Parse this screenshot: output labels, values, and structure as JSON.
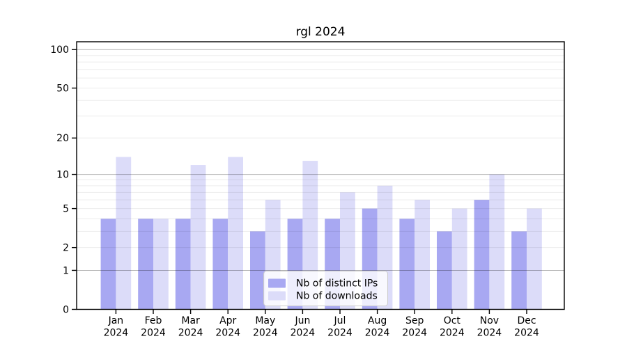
{
  "chart_data": {
    "type": "bar",
    "title": "rgl 2024",
    "categories": [
      "Jan 2024",
      "Feb 2024",
      "Mar 2024",
      "Apr 2024",
      "May 2024",
      "Jun 2024",
      "Jul 2024",
      "Aug 2024",
      "Sep 2024",
      "Oct 2024",
      "Nov 2024",
      "Dec 2024"
    ],
    "x_tick_months": [
      "Jan",
      "Feb",
      "Mar",
      "Apr",
      "May",
      "Jun",
      "Jul",
      "Aug",
      "Sep",
      "Oct",
      "Nov",
      "Dec"
    ],
    "x_tick_year": "2024",
    "series": [
      {
        "name": "Nb of distinct IPs",
        "color": "#a8a8f2",
        "values": [
          4,
          4,
          4,
          4,
          3,
          4,
          4,
          5,
          4,
          3,
          6,
          3
        ]
      },
      {
        "name": "Nb of downloads",
        "color": "#dcdcf9",
        "values": [
          14,
          4,
          12,
          14,
          6,
          13,
          7,
          8,
          6,
          5,
          10,
          5
        ]
      }
    ],
    "yscale": "log1p",
    "ylim": [
      0,
      115
    ],
    "y_ticks": [
      0,
      1,
      2,
      5,
      10,
      20,
      50,
      100
    ],
    "y_tick_labels": [
      "0",
      "1",
      "2",
      "5",
      "10",
      "20",
      "50",
      "100"
    ],
    "minor_gridlines": [
      2,
      3,
      4,
      5,
      6,
      7,
      8,
      9,
      20,
      30,
      40,
      50,
      60,
      70,
      80,
      90
    ],
    "major_gridlines": [
      1,
      10,
      100
    ],
    "grid": true,
    "legend_position": "inside-bottom-center",
    "colors": {
      "axis": "#000000",
      "minor_grid": "rgba(0,0,0,0.075)",
      "major_grid": "rgba(0,0,0,0.30)",
      "legend_border": "#cccccc",
      "background": "#ffffff"
    }
  }
}
